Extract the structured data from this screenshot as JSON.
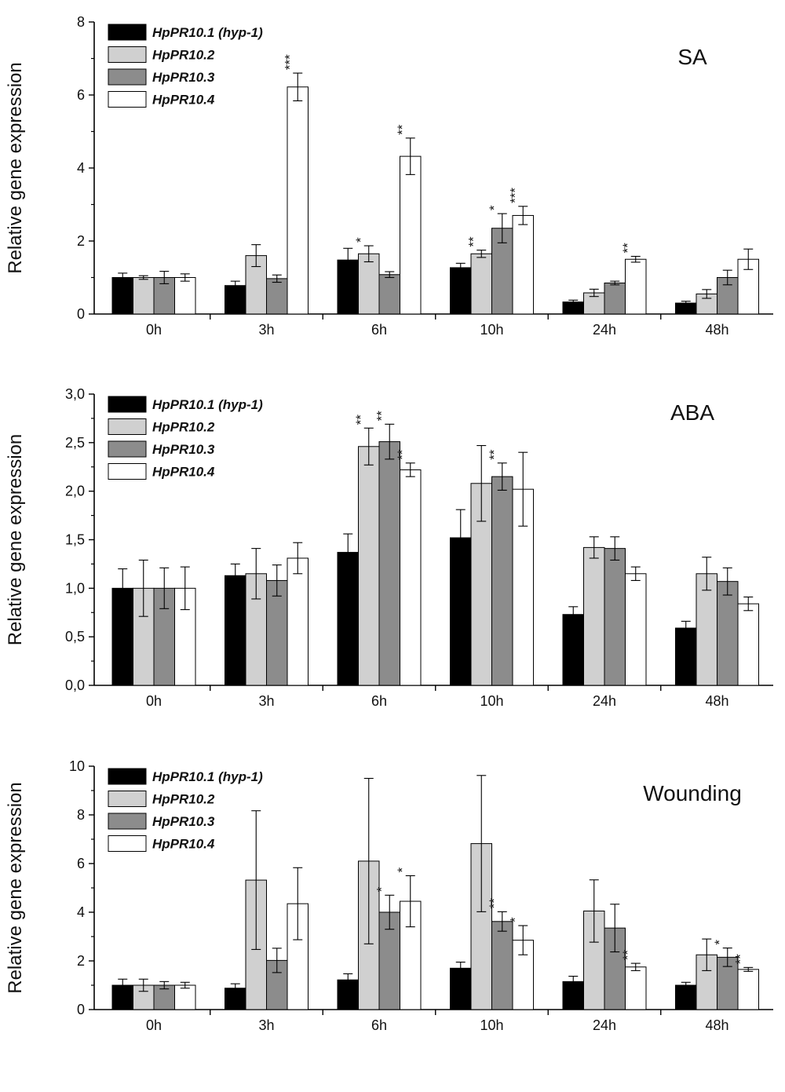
{
  "chart_data": [
    {
      "type": "bar",
      "title": "SA",
      "ylabel": "Relative gene expression",
      "xlabel": "",
      "ylim": [
        0,
        8
      ],
      "yticks": [
        "0",
        "2",
        "4",
        "6",
        "8"
      ],
      "categories": [
        "0h",
        "3h",
        "6h",
        "10h",
        "24h",
        "48h"
      ],
      "legend_position": "top-left",
      "series": [
        {
          "name": "HpPR10.1 (hyp-1)",
          "color": "#000000",
          "values": [
            1.0,
            0.78,
            1.48,
            1.27,
            0.33,
            0.3
          ],
          "errors": [
            0.12,
            0.12,
            0.32,
            0.12,
            0.05,
            0.05
          ],
          "sig": [
            "",
            "",
            "",
            "",
            "",
            ""
          ]
        },
        {
          "name": "HpPR10.2",
          "color": "#d0d0d0",
          "values": [
            1.0,
            1.6,
            1.65,
            1.65,
            0.58,
            0.55
          ],
          "errors": [
            0.05,
            0.3,
            0.22,
            0.1,
            0.1,
            0.12
          ],
          "sig": [
            "",
            "",
            "*",
            "**",
            "",
            ""
          ]
        },
        {
          "name": "HpPR10.3",
          "color": "#8c8c8c",
          "values": [
            1.0,
            0.97,
            1.08,
            2.35,
            0.85,
            1.0
          ],
          "errors": [
            0.17,
            0.1,
            0.08,
            0.4,
            0.05,
            0.2
          ],
          "sig": [
            "",
            "",
            "",
            "*",
            "",
            ""
          ]
        },
        {
          "name": "HpPR10.4",
          "color": "#ffffff",
          "values": [
            1.0,
            6.22,
            4.32,
            2.7,
            1.5,
            1.5
          ],
          "errors": [
            0.1,
            0.38,
            0.5,
            0.25,
            0.08,
            0.28
          ],
          "sig": [
            "",
            "***",
            "**",
            "***",
            "**",
            ""
          ]
        }
      ]
    },
    {
      "type": "bar",
      "title": "ABA",
      "ylabel": "Relative gene expression",
      "xlabel": "",
      "ylim": [
        0,
        3
      ],
      "yticks": [
        "0,0",
        "0,5",
        "1,0",
        "1,5",
        "2,0",
        "2,5",
        "3,0"
      ],
      "categories": [
        "0h",
        "3h",
        "6h",
        "10h",
        "24h",
        "48h"
      ],
      "legend_position": "top-left",
      "series": [
        {
          "name": "HpPR10.1 (hyp-1)",
          "color": "#000000",
          "values": [
            1.0,
            1.13,
            1.37,
            1.52,
            0.73,
            0.59
          ],
          "errors": [
            0.2,
            0.12,
            0.19,
            0.29,
            0.08,
            0.07
          ],
          "sig": [
            "",
            "",
            "",
            "",
            "",
            ""
          ]
        },
        {
          "name": "HpPR10.2",
          "color": "#d0d0d0",
          "values": [
            1.0,
            1.15,
            2.46,
            2.08,
            1.42,
            1.15
          ],
          "errors": [
            0.29,
            0.26,
            0.19,
            0.39,
            0.11,
            0.17
          ],
          "sig": [
            "",
            "",
            "**",
            "",
            "",
            ""
          ]
        },
        {
          "name": "HpPR10.3",
          "color": "#8c8c8c",
          "values": [
            1.0,
            1.08,
            2.51,
            2.15,
            1.41,
            1.07
          ],
          "errors": [
            0.21,
            0.16,
            0.18,
            0.14,
            0.12,
            0.14
          ],
          "sig": [
            "",
            "",
            "**",
            "**",
            "",
            ""
          ]
        },
        {
          "name": "HpPR10.4",
          "color": "#ffffff",
          "values": [
            1.0,
            1.31,
            2.22,
            2.02,
            1.15,
            0.84
          ],
          "errors": [
            0.22,
            0.16,
            0.07,
            0.38,
            0.07,
            0.07
          ],
          "sig": [
            "",
            "",
            "**",
            "",
            "",
            ""
          ]
        }
      ]
    },
    {
      "type": "bar",
      "title": "Wounding",
      "ylabel": "Relative gene expression",
      "xlabel": "",
      "ylim": [
        0,
        10
      ],
      "yticks": [
        "0",
        "2",
        "4",
        "6",
        "8",
        "10"
      ],
      "categories": [
        "0h",
        "3h",
        "6h",
        "10h",
        "24h",
        "48h"
      ],
      "legend_position": "top-left",
      "series": [
        {
          "name": "HpPR10.1 (hyp-1)",
          "color": "#000000",
          "values": [
            1.0,
            0.88,
            1.22,
            1.7,
            1.15,
            1.0
          ],
          "errors": [
            0.25,
            0.18,
            0.25,
            0.25,
            0.22,
            0.12
          ],
          "sig": [
            "",
            "",
            "",
            "",
            "",
            ""
          ]
        },
        {
          "name": "HpPR10.2",
          "color": "#d0d0d0",
          "values": [
            1.0,
            5.32,
            6.1,
            6.82,
            4.05,
            2.25
          ],
          "errors": [
            0.25,
            2.85,
            3.4,
            2.8,
            1.28,
            0.65
          ],
          "sig": [
            "",
            "",
            "",
            "",
            "",
            ""
          ]
        },
        {
          "name": "HpPR10.3",
          "color": "#8c8c8c",
          "values": [
            1.0,
            2.02,
            4.0,
            3.62,
            3.35,
            2.15
          ],
          "errors": [
            0.15,
            0.5,
            0.7,
            0.4,
            0.98,
            0.38
          ],
          "sig": [
            "",
            "",
            "*",
            "**",
            "",
            "*"
          ]
        },
        {
          "name": "HpPR10.4",
          "color": "#ffffff",
          "values": [
            1.0,
            4.35,
            4.45,
            2.85,
            1.75,
            1.65
          ],
          "errors": [
            0.12,
            1.48,
            1.05,
            0.6,
            0.15,
            0.08
          ],
          "sig": [
            "",
            "",
            "*",
            "*",
            "**",
            "**"
          ]
        }
      ]
    }
  ]
}
